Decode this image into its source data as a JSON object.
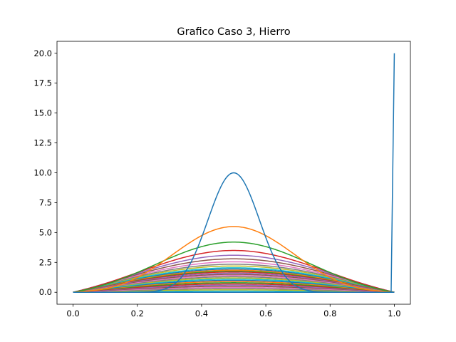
{
  "chart_data": {
    "type": "line",
    "title": "Grafico Caso 3, Hierro",
    "xlabel": "",
    "ylabel": "",
    "xlim": [
      -0.05,
      1.05
    ],
    "ylim": [
      -1.0,
      21.0
    ],
    "x_ticks": [
      0.0,
      0.2,
      0.4,
      0.6,
      0.8,
      1.0
    ],
    "x_tick_labels": [
      "0.0",
      "0.2",
      "0.4",
      "0.6",
      "0.8",
      "1.0"
    ],
    "y_ticks": [
      0.0,
      2.5,
      5.0,
      7.5,
      10.0,
      12.5,
      15.0,
      17.5,
      20.0
    ],
    "y_tick_labels": [
      "0.0",
      "2.5",
      "5.0",
      "7.5",
      "10.0",
      "12.5",
      "15.0",
      "17.5",
      "20.0"
    ],
    "grid": false,
    "legend": "none",
    "series_profile": {
      "initial": {
        "amplitude": 10.0,
        "center": 0.5,
        "width": 0.08,
        "color": "#1f77b4"
      },
      "peaks": [
        5.5,
        4.2,
        3.5,
        3.1,
        2.8,
        2.55,
        2.35,
        2.2,
        2.05,
        1.95,
        1.85,
        1.78,
        1.7,
        1.6,
        1.5,
        1.4,
        1.3,
        1.2,
        1.1,
        1.0,
        0.9,
        0.8,
        0.7,
        0.6,
        0.5,
        0.4,
        0.3,
        0.2,
        0.1
      ],
      "colors": [
        "#ff7f0e",
        "#2ca02c",
        "#d62728",
        "#9467bd",
        "#8c564b",
        "#e377c2",
        "#7f7f7f",
        "#bcbd22",
        "#17becf",
        "#1f77b4"
      ]
    },
    "final_series": {
      "x": [
        0.0,
        0.99,
        1.0
      ],
      "y": [
        0.0,
        0.0,
        20.0
      ],
      "color": "#1f77b4"
    }
  }
}
